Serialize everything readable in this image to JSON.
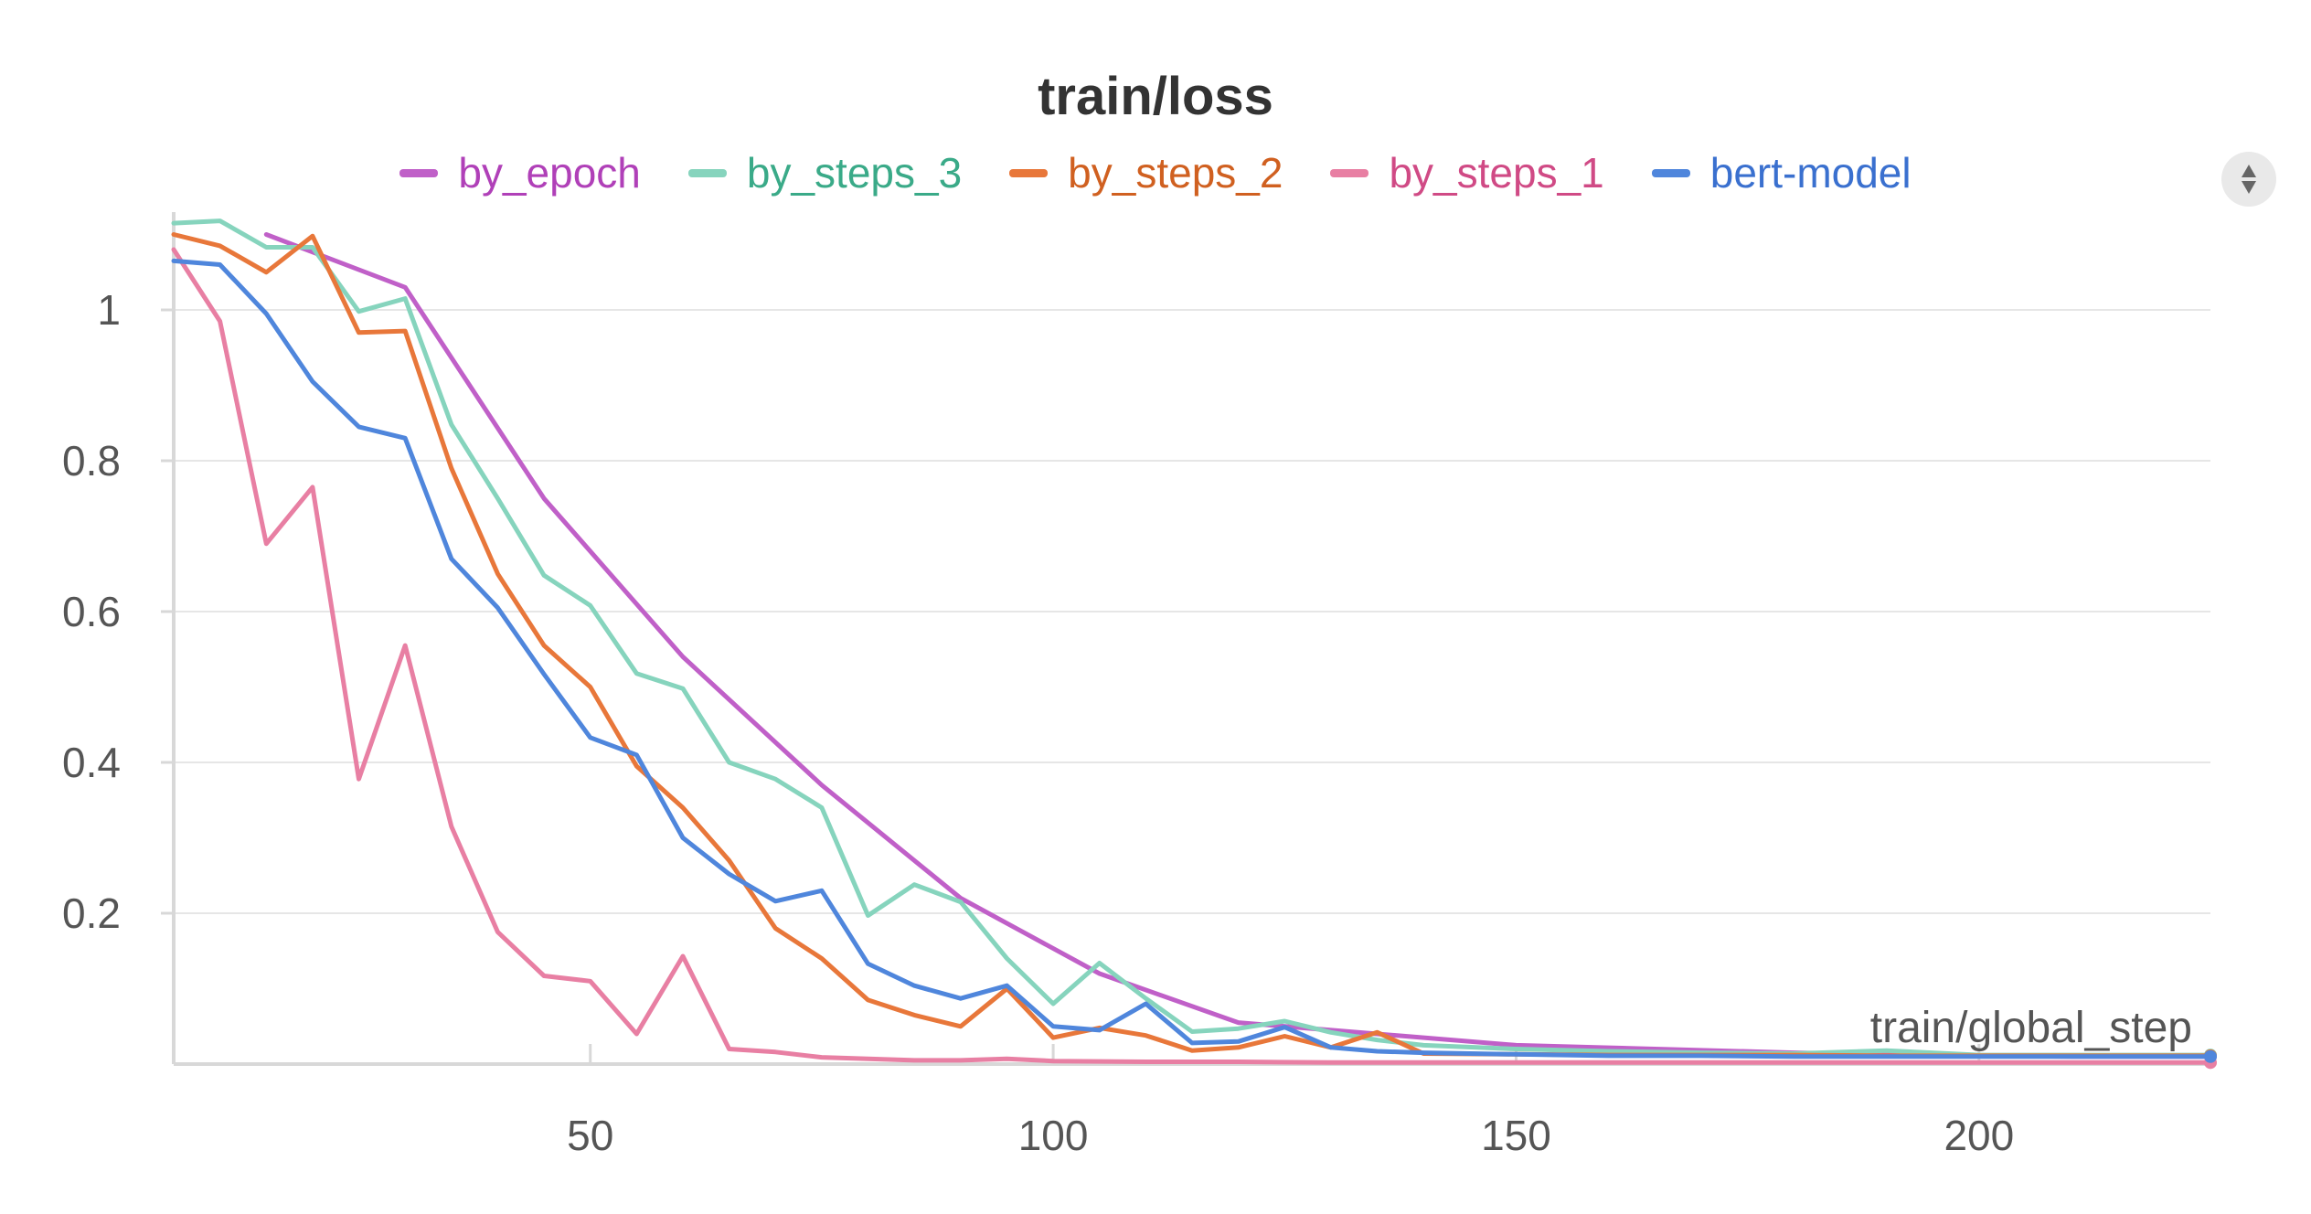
{
  "chart_data": {
    "type": "line",
    "title": "train/loss",
    "xlabel": "train/global_step",
    "ylabel": "",
    "xlim": [
      5,
      225
    ],
    "ylim": [
      0,
      1.12
    ],
    "x_ticks": [
      50,
      100,
      150,
      200
    ],
    "y_ticks": [
      0.2,
      0.4,
      0.6,
      0.8,
      1
    ],
    "y_tick_labels": [
      "0.2",
      "0.4",
      "0.6",
      "0.8",
      "1"
    ],
    "grid": true,
    "legend_position": "top",
    "series": [
      {
        "name": "by_epoch",
        "color": "#c060c8",
        "label_color": "#b040b8",
        "x": [
          15,
          30,
          45,
          60,
          75,
          90,
          105,
          120,
          135,
          150,
          165,
          180,
          195,
          210,
          225
        ],
        "y": [
          1.1,
          1.03,
          0.75,
          0.54,
          0.37,
          0.22,
          0.12,
          0.055,
          0.04,
          0.025,
          0.02,
          0.015,
          0.012,
          0.01,
          0.01
        ]
      },
      {
        "name": "by_steps_3",
        "color": "#86d4bd",
        "label_color": "#3aaa88",
        "x": [
          5,
          10,
          15,
          20,
          25,
          30,
          35,
          40,
          45,
          50,
          55,
          60,
          65,
          70,
          75,
          80,
          85,
          90,
          95,
          100,
          105,
          110,
          115,
          120,
          125,
          130,
          135,
          140,
          150,
          160,
          170,
          180,
          190,
          200,
          210,
          220,
          225
        ],
        "y": [
          1.115,
          1.118,
          1.083,
          1.083,
          0.998,
          1.015,
          0.848,
          0.75,
          0.648,
          0.608,
          0.518,
          0.498,
          0.4,
          0.378,
          0.34,
          0.197,
          0.238,
          0.215,
          0.14,
          0.08,
          0.134,
          0.087,
          0.043,
          0.047,
          0.057,
          0.042,
          0.032,
          0.025,
          0.02,
          0.017,
          0.015,
          0.014,
          0.018,
          0.012,
          0.012,
          0.012,
          0.012
        ]
      },
      {
        "name": "by_steps_2",
        "color": "#e8773a",
        "label_color": "#d06020",
        "x": [
          5,
          10,
          15,
          20,
          25,
          30,
          35,
          40,
          45,
          50,
          55,
          60,
          65,
          70,
          75,
          80,
          85,
          90,
          95,
          100,
          105,
          110,
          115,
          120,
          125,
          130,
          135,
          140,
          150,
          160,
          170,
          180,
          190,
          200,
          210,
          220,
          225
        ],
        "y": [
          1.1,
          1.085,
          1.05,
          1.098,
          0.97,
          0.972,
          0.79,
          0.65,
          0.555,
          0.5,
          0.395,
          0.34,
          0.27,
          0.18,
          0.14,
          0.085,
          0.065,
          0.05,
          0.1,
          0.035,
          0.048,
          0.038,
          0.018,
          0.022,
          0.037,
          0.022,
          0.042,
          0.014,
          0.013,
          0.012,
          0.012,
          0.012,
          0.011,
          0.011,
          0.011,
          0.011,
          0.011
        ]
      },
      {
        "name": "by_steps_1",
        "color": "#e87fa3",
        "label_color": "#d04a85",
        "x": [
          5,
          10,
          15,
          20,
          25,
          30,
          35,
          40,
          45,
          50,
          55,
          60,
          65,
          70,
          75,
          80,
          85,
          90,
          95,
          100,
          110,
          120,
          130,
          150,
          175,
          200,
          225
        ],
        "y": [
          1.08,
          0.985,
          0.69,
          0.765,
          0.378,
          0.555,
          0.315,
          0.175,
          0.117,
          0.11,
          0.04,
          0.143,
          0.02,
          0.016,
          0.009,
          0.007,
          0.005,
          0.005,
          0.007,
          0.004,
          0.003,
          0.003,
          0.002,
          0.002,
          0.002,
          0.002,
          0.002
        ]
      },
      {
        "name": "bert-model",
        "color": "#4f86dc",
        "label_color": "#3a70cf",
        "x": [
          5,
          10,
          15,
          20,
          25,
          30,
          35,
          40,
          45,
          50,
          55,
          60,
          65,
          70,
          75,
          80,
          85,
          90,
          95,
          100,
          105,
          110,
          115,
          120,
          125,
          130,
          135,
          140,
          150,
          160,
          170,
          180,
          190,
          200,
          210,
          220,
          225
        ],
        "y": [
          1.065,
          1.06,
          0.995,
          0.905,
          0.845,
          0.83,
          0.67,
          0.605,
          0.517,
          0.433,
          0.41,
          0.3,
          0.252,
          0.216,
          0.23,
          0.133,
          0.104,
          0.087,
          0.104,
          0.05,
          0.045,
          0.08,
          0.028,
          0.03,
          0.049,
          0.022,
          0.017,
          0.015,
          0.013,
          0.011,
          0.011,
          0.01,
          0.01,
          0.01,
          0.01,
          0.01,
          0.01
        ]
      }
    ]
  }
}
